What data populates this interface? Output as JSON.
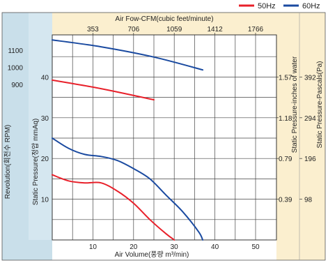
{
  "chart_data": {
    "type": "line",
    "title": "",
    "legend": [
      {
        "label": "50Hz",
        "color": "#e8202a"
      },
      {
        "label": "60Hz",
        "color": "#1a4aa0"
      }
    ],
    "legend_position": "top-right",
    "grid": true,
    "xlabel_bottom": "Air Volume(풍량 m³/min)",
    "xlabel_top": "Air Fow-CFM(cubic feet/minute)",
    "x_ticks_bottom": [
      "10",
      "20",
      "30",
      "40",
      "50"
    ],
    "x_ticks_top": [
      "353",
      "706",
      "1059",
      "1412",
      "1766"
    ],
    "xlim": [
      0,
      55
    ],
    "ylabel_pressure": "Static Pressure(정압 mmAq)",
    "y_ticks_pressure": [
      "10",
      "20",
      "30",
      "40"
    ],
    "ylim_pressure": [
      0,
      50
    ],
    "ylabel_revolution": "Revolution(회전수 RPM)",
    "y_ticks_revolution": [
      "900",
      "1000",
      "1100"
    ],
    "ylabel_inches": "Static Pressure-inches of water",
    "y_ticks_inches": [
      "0.39",
      "0.79",
      "1.18",
      "1.57"
    ],
    "ylabel_pascals": "Static Pressure-Pascals(Pa)",
    "y_ticks_pascals": [
      "98",
      "196",
      "294",
      "392"
    ],
    "series": [
      {
        "name": "50Hz",
        "axis": "static_pressure_mmAq",
        "color": "#e8202a",
        "x": [
          0,
          4,
          8,
          12,
          16,
          20,
          24,
          28,
          30
        ],
        "y": [
          16,
          14.5,
          14,
          14,
          12,
          9,
          5,
          1.5,
          0
        ]
      },
      {
        "name": "60Hz",
        "axis": "static_pressure_mmAq",
        "color": "#1a4aa0",
        "x": [
          0,
          4,
          8,
          12,
          16,
          20,
          24,
          28,
          32,
          36,
          37
        ],
        "y": [
          25,
          22.5,
          21,
          20.5,
          19.5,
          17.5,
          15,
          11,
          7,
          2,
          0
        ]
      },
      {
        "name": "50Hz",
        "axis": "revolution_rpm",
        "color": "#e8202a",
        "x": [
          0,
          12,
          25
        ],
        "y": [
          925,
          875,
          810
        ]
      },
      {
        "name": "60Hz",
        "axis": "revolution_rpm",
        "color": "#1a4aa0",
        "x": [
          0,
          12,
          25,
          37
        ],
        "y": [
          1160,
          1120,
          1060,
          985
        ]
      }
    ]
  }
}
